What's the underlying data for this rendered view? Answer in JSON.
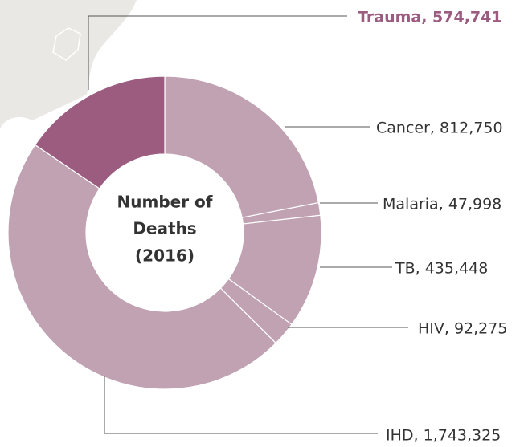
{
  "chart_data": {
    "type": "donut",
    "title_lines": [
      "Number of",
      "Deaths",
      "(2016)"
    ],
    "categories": [
      "Cancer",
      "Malaria",
      "TB",
      "HIV",
      "IHD",
      "Trauma"
    ],
    "values": [
      812750,
      47998,
      435448,
      92275,
      1743325,
      574741
    ],
    "labels": [
      "Cancer, 812,750",
      "Malaria, 47,998",
      "TB, 435,448",
      "HIV, 92,275",
      "IHD, 1,743,325",
      "Trauma, 574,741"
    ],
    "colors": [
      "#c0a2b2",
      "#c0a2b2",
      "#c0a2b2",
      "#c0a2b2",
      "#c0a2b2",
      "#9c5c80"
    ],
    "highlight": "Trauma"
  }
}
